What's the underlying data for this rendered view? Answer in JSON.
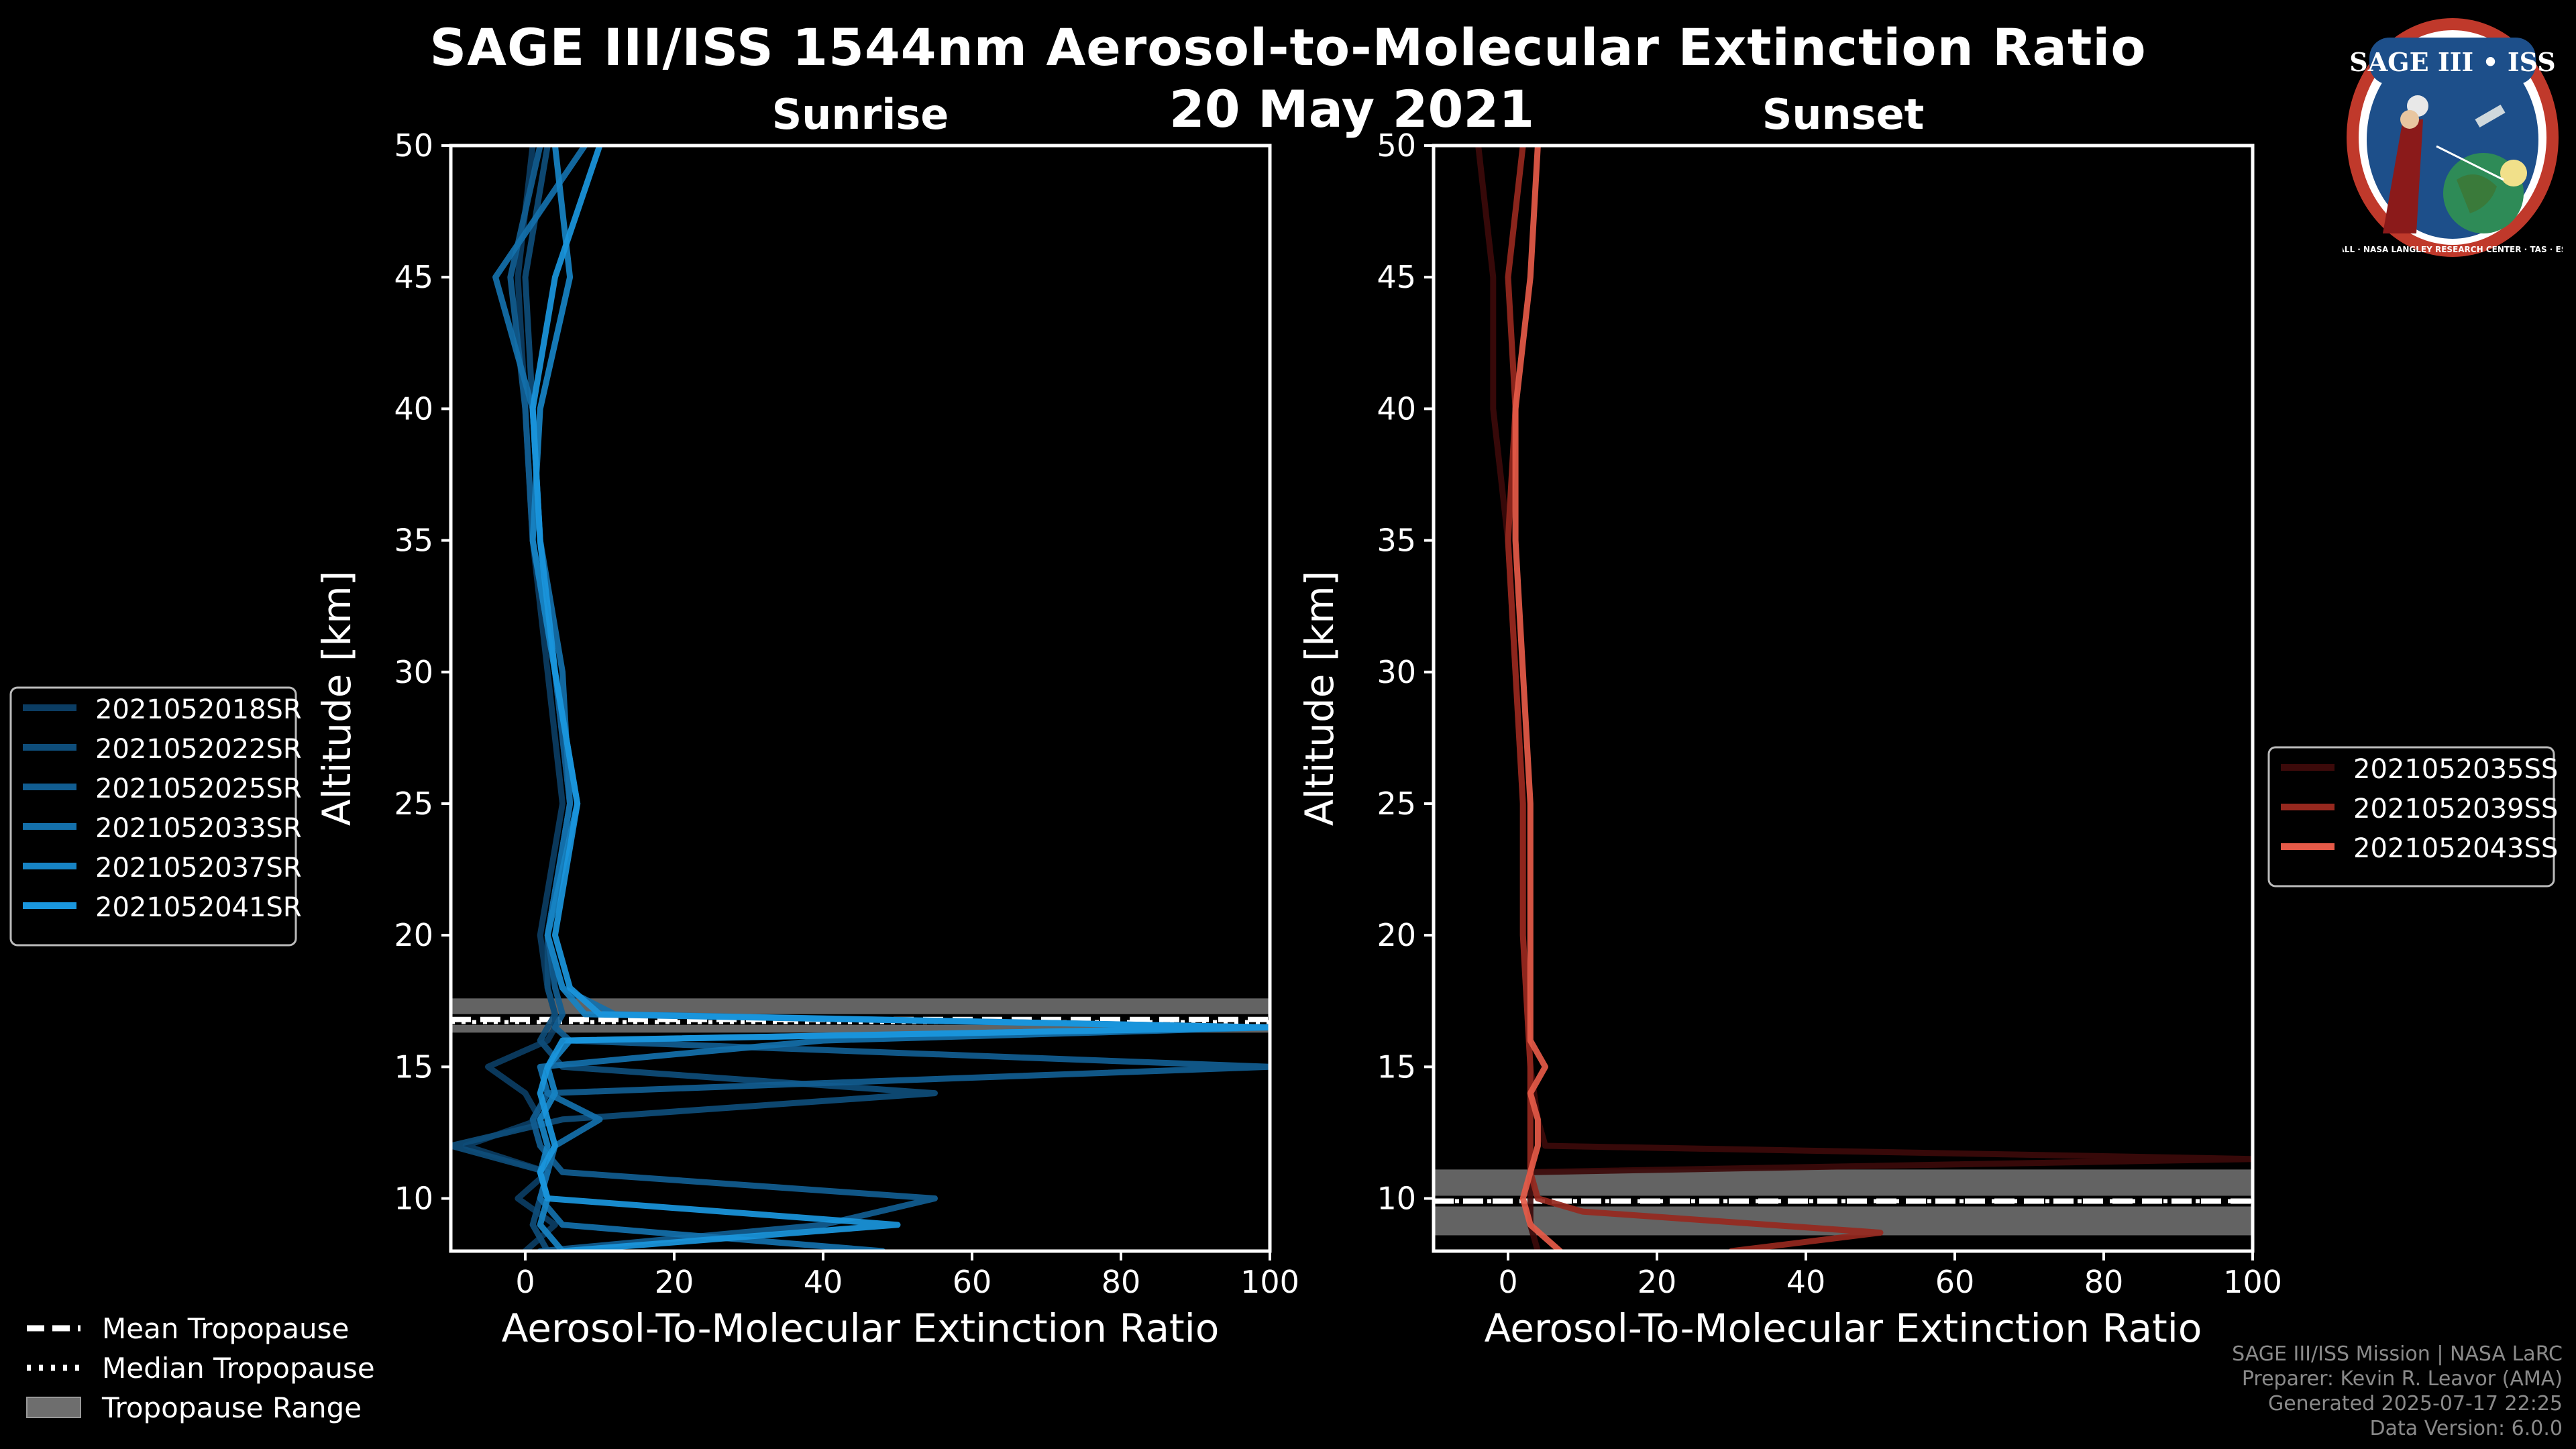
{
  "title": "SAGE III/ISS 1544nm Aerosol-to-Molecular Extinction Ratio",
  "date": "20 May 2021",
  "badge": {
    "text": "SAGE III • ISS",
    "ring_text": "BALL · NASA LANGLEY RESEARCH CENTER · TAS · ESA"
  },
  "footer": [
    "SAGE III/ISS Mission | NASA LaRC",
    "Preparer: Kevin R. Leavor (AMA)",
    "Generated 2025-07-17 22:25",
    "Data Version: 6.0.0"
  ],
  "colors": {
    "background": "#000000",
    "axes": "#ffffff",
    "tropopause_band": "#6e6e6e"
  },
  "tropo_legend": [
    {
      "label": "Mean Tropopause",
      "style": "dashed"
    },
    {
      "label": "Median Tropopause",
      "style": "dotted"
    },
    {
      "label": "Tropopause Range",
      "style": "patch"
    }
  ],
  "chart_data": [
    {
      "type": "line",
      "title": "Sunrise",
      "xlabel": "Aerosol-To-Molecular Extinction Ratio",
      "ylabel": "Altitude [km]",
      "xlim": [
        -10,
        100
      ],
      "ylim": [
        8,
        50
      ],
      "xticks": [
        0,
        20,
        40,
        60,
        80,
        100
      ],
      "yticks": [
        10,
        15,
        20,
        25,
        30,
        35,
        40,
        45,
        50
      ],
      "legend_position": "left",
      "tropopause": {
        "mean": 16.8,
        "median": 16.7,
        "range": [
          16.3,
          17.6
        ]
      },
      "series": [
        {
          "name": "2021052018SR",
          "color": "#0b3d63",
          "alt": [
            8,
            9,
            10,
            11,
            12,
            13,
            14,
            15,
            16,
            16.5,
            17,
            18,
            20,
            25,
            30,
            35,
            40,
            45,
            50
          ],
          "ratio": [
            0,
            4,
            -1,
            3,
            -8,
            2,
            0,
            -5,
            3,
            4,
            4,
            3,
            2,
            5,
            3,
            1,
            0,
            -1,
            1
          ]
        },
        {
          "name": "2021052022SR",
          "color": "#0e4d7a",
          "alt": [
            8,
            9,
            10,
            11,
            12,
            13,
            14,
            15,
            16,
            16.5,
            17,
            18,
            20,
            25,
            30,
            35,
            40,
            45,
            50
          ],
          "ratio": [
            3,
            1,
            2,
            3,
            -10,
            5,
            55,
            5,
            2,
            3,
            4,
            3,
            3,
            6,
            4,
            2,
            1,
            0,
            3
          ]
        },
        {
          "name": "2021052025SR",
          "color": "#115d91",
          "alt": [
            8,
            9,
            10,
            11,
            12,
            13,
            14,
            15,
            16,
            16.5,
            17,
            18,
            20,
            25,
            30,
            35,
            40,
            45,
            50
          ],
          "ratio": [
            2,
            40,
            55,
            5,
            2,
            1,
            3,
            100,
            6,
            4,
            5,
            4,
            3,
            6,
            4,
            1,
            0,
            -2,
            2
          ]
        },
        {
          "name": "2021052033SR",
          "color": "#1470ab",
          "alt": [
            8,
            9,
            10,
            11,
            12,
            13,
            14,
            15,
            16,
            16.5,
            17,
            18,
            20,
            25,
            30,
            35,
            40,
            45,
            50
          ],
          "ratio": [
            48,
            5,
            2,
            3,
            4,
            10,
            3,
            2,
            40,
            100,
            12,
            5,
            3,
            6,
            5,
            2,
            1,
            -4,
            8
          ]
        },
        {
          "name": "2021052037SR",
          "color": "#1783c4",
          "alt": [
            8,
            9,
            10,
            11,
            12,
            13,
            14,
            15,
            16,
            16.5,
            17,
            18,
            20,
            25,
            30,
            35,
            40,
            45,
            50
          ],
          "ratio": [
            5,
            2,
            3,
            2,
            3,
            2,
            4,
            3,
            6,
            100,
            8,
            5,
            3,
            7,
            4,
            1,
            2,
            6,
            4
          ]
        },
        {
          "name": "2021052041SR",
          "color": "#1a96dd",
          "alt": [
            8,
            9,
            10,
            11,
            12,
            13,
            14,
            15,
            16,
            16.5,
            17,
            18,
            20,
            25,
            30,
            35,
            40,
            45,
            50
          ],
          "ratio": [
            5,
            50,
            3,
            2,
            4,
            3,
            2,
            3,
            5,
            100,
            10,
            6,
            4,
            7,
            4,
            2,
            1,
            4,
            10
          ]
        }
      ]
    },
    {
      "type": "line",
      "title": "Sunset",
      "xlabel": "Aerosol-To-Molecular Extinction Ratio",
      "ylabel": "Altitude [km]",
      "xlim": [
        -10,
        100
      ],
      "ylim": [
        8,
        50
      ],
      "xticks": [
        0,
        20,
        40,
        60,
        80,
        100
      ],
      "yticks": [
        10,
        15,
        20,
        25,
        30,
        35,
        40,
        45,
        50
      ],
      "legend_position": "right",
      "tropopause": {
        "mean": 9.9,
        "median": 9.9,
        "range": [
          8.6,
          11.1
        ]
      },
      "series": [
        {
          "name": "2021052035SS",
          "color": "#3c0a0a",
          "alt": [
            8,
            9,
            10,
            11,
            11.5,
            12,
            13,
            15,
            20,
            25,
            30,
            35,
            40,
            45,
            50
          ],
          "ratio": [
            4,
            3,
            3,
            3,
            100,
            5,
            4,
            3,
            2,
            2,
            1,
            0,
            -2,
            -2,
            -4
          ]
        },
        {
          "name": "2021052039SS",
          "color": "#96281e",
          "alt": [
            8,
            8.7,
            9.5,
            10,
            11,
            12,
            13,
            15,
            20,
            25,
            30,
            35,
            40,
            45,
            50
          ],
          "ratio": [
            30,
            50,
            10,
            4,
            3,
            3,
            3,
            3,
            2,
            2,
            1,
            0,
            1,
            0,
            2
          ]
        },
        {
          "name": "2021052043SS",
          "color": "#e55a48",
          "alt": [
            8,
            9,
            10,
            11,
            12,
            13,
            14,
            15,
            16,
            20,
            25,
            30,
            35,
            40,
            45,
            50
          ],
          "ratio": [
            7,
            3,
            2,
            3,
            4,
            4,
            3,
            5,
            3,
            3,
            3,
            2,
            1,
            1,
            3,
            4
          ]
        }
      ]
    }
  ]
}
